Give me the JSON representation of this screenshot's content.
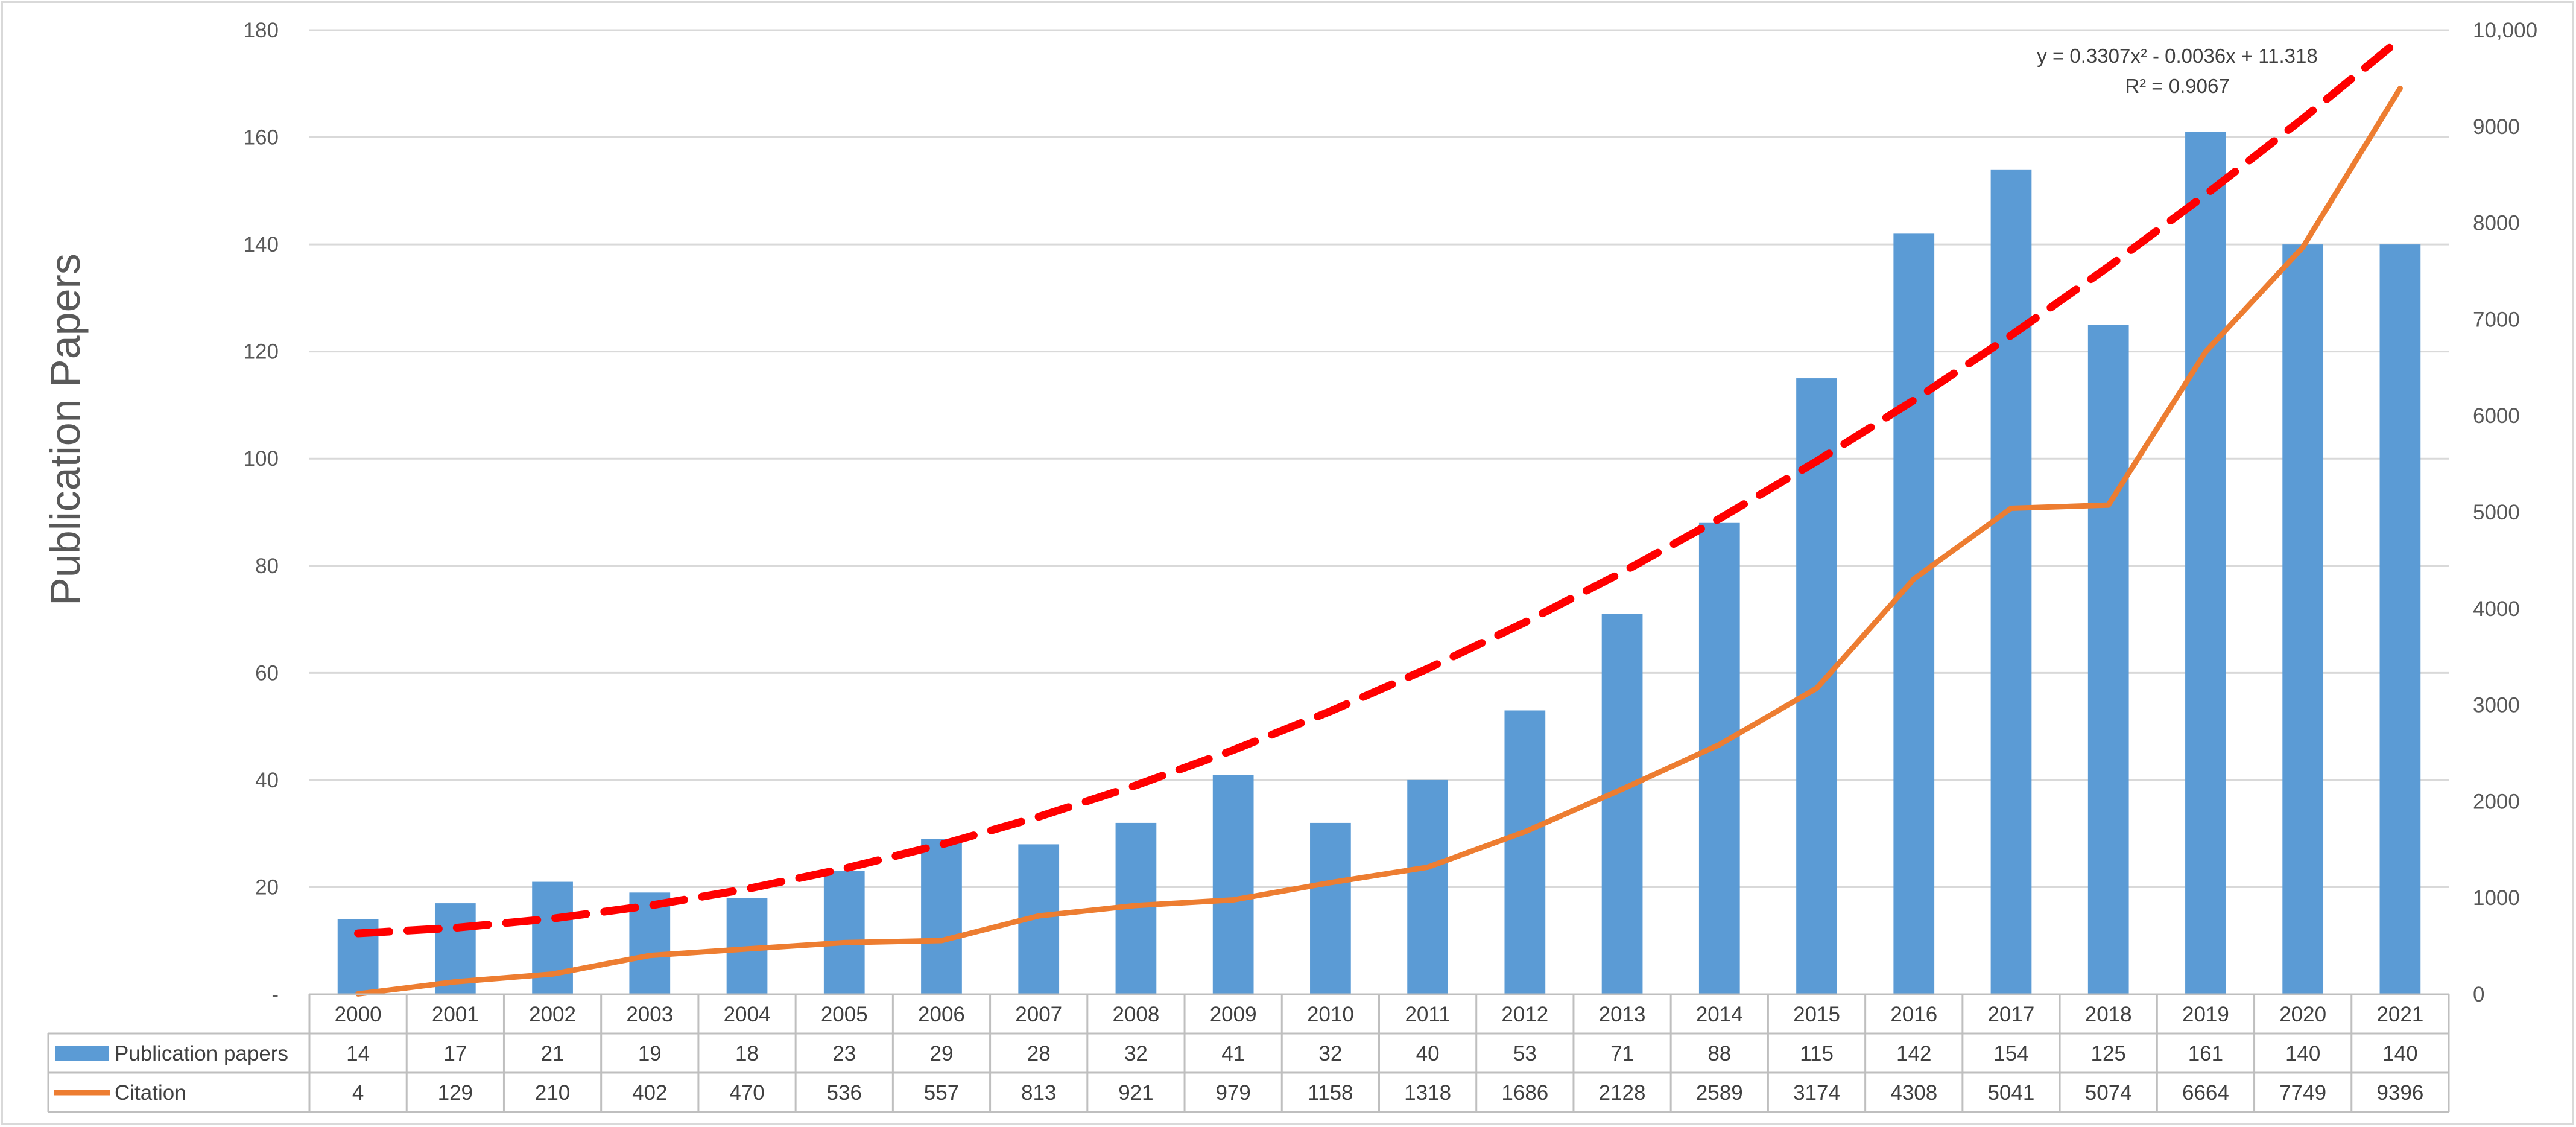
{
  "chart_data": {
    "type": "bar",
    "ylabel": "Publication Papers",
    "categories": [
      "2000",
      "2001",
      "2002",
      "2003",
      "2004",
      "2005",
      "2006",
      "2007",
      "2008",
      "2009",
      "2010",
      "2011",
      "2012",
      "2013",
      "2014",
      "2015",
      "2016",
      "2017",
      "2018",
      "2019",
      "2020",
      "2021"
    ],
    "series": [
      {
        "name": "Publication papers",
        "type": "bar",
        "axis": "left",
        "color": "#5b9bd5",
        "values": [
          14,
          17,
          21,
          19,
          18,
          23,
          29,
          28,
          32,
          41,
          32,
          40,
          53,
          71,
          88,
          115,
          142,
          154,
          125,
          161,
          140,
          140
        ]
      },
      {
        "name": "Citation",
        "type": "line",
        "axis": "right",
        "color": "#ed7d31",
        "values": [
          4,
          129,
          210,
          402,
          470,
          536,
          557,
          813,
          921,
          979,
          1158,
          1318,
          1686,
          2128,
          2589,
          3174,
          4308,
          5041,
          5074,
          6664,
          7749,
          9396
        ]
      }
    ],
    "trendline": {
      "type": "polynomial-2",
      "style": "dashed",
      "color": "#ff0000",
      "axis": "right",
      "coefficients": {
        "a": 0.3307,
        "b": -0.0036,
        "c": 11.318
      },
      "equation_label": "y = 0.3307x² - 0.0036x + 11.318",
      "r2_label": "R² = 0.9067"
    },
    "left_axis": {
      "ylim": [
        0,
        180
      ],
      "ticks": [
        0,
        20,
        40,
        60,
        80,
        100,
        120,
        140,
        160,
        180
      ],
      "tick_labels": [
        "-",
        "20",
        "40",
        "60",
        "80",
        "100",
        "120",
        "140",
        "160",
        "180"
      ]
    },
    "right_axis": {
      "ylim": [
        0,
        10000
      ],
      "ticks": [
        0,
        1000,
        2000,
        3000,
        4000,
        5000,
        6000,
        7000,
        8000,
        9000,
        10000
      ],
      "tick_labels": [
        "0",
        "1000",
        "2000",
        "3000",
        "4000",
        "5000",
        "6000",
        "7000",
        "8000",
        "9000",
        "10,000"
      ]
    },
    "grid": true,
    "legend": "data-table-below"
  }
}
